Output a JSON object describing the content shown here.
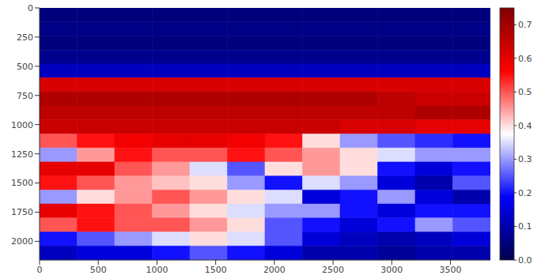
{
  "chart_data": {
    "type": "heatmap",
    "color": "seismic",
    "xlim": [
      0,
      3840
    ],
    "xticks": [
      0,
      500,
      1000,
      1500,
      2000,
      2500,
      3000,
      3500
    ],
    "ylim": [
      0,
      2160
    ],
    "yticks": [
      0,
      250,
      500,
      750,
      1000,
      1250,
      1500,
      1750,
      2000
    ],
    "x_bins": [
      0,
      320,
      640,
      960,
      1280,
      1600,
      1920,
      2240,
      2560,
      2880,
      3200,
      3520,
      3840
    ],
    "y_bins": [
      0,
      120,
      240,
      360,
      480,
      600,
      720,
      840,
      960,
      1080,
      1200,
      1320,
      1440,
      1560,
      1680,
      1800,
      1920,
      2040,
      2160
    ],
    "cells": [
      [
        0.05,
        0.05,
        0.05,
        0.05,
        0.05,
        0.05,
        0.05,
        0.05,
        0.05,
        0.05,
        0.05,
        0.05
      ],
      [
        0.06,
        0.06,
        0.06,
        0.06,
        0.06,
        0.06,
        0.06,
        0.06,
        0.06,
        0.06,
        0.06,
        0.06
      ],
      [
        0.05,
        0.05,
        0.05,
        0.05,
        0.05,
        0.05,
        0.05,
        0.05,
        0.05,
        0.05,
        0.05,
        0.05
      ],
      [
        0.07,
        0.07,
        0.07,
        0.07,
        0.07,
        0.07,
        0.07,
        0.07,
        0.07,
        0.07,
        0.07,
        0.07
      ],
      [
        0.12,
        0.12,
        0.12,
        0.12,
        0.12,
        0.12,
        0.12,
        0.12,
        0.12,
        0.12,
        0.12,
        0.12
      ],
      [
        0.62,
        0.62,
        0.62,
        0.62,
        0.62,
        0.62,
        0.62,
        0.62,
        0.62,
        0.62,
        0.62,
        0.62
      ],
      [
        0.68,
        0.68,
        0.68,
        0.68,
        0.68,
        0.68,
        0.68,
        0.68,
        0.68,
        0.66,
        0.64,
        0.64
      ],
      [
        0.66,
        0.66,
        0.66,
        0.66,
        0.66,
        0.66,
        0.66,
        0.66,
        0.66,
        0.66,
        0.68,
        0.68
      ],
      [
        0.64,
        0.64,
        0.64,
        0.64,
        0.64,
        0.64,
        0.64,
        0.64,
        0.62,
        0.62,
        0.6,
        0.6
      ],
      [
        0.5,
        0.55,
        0.58,
        0.6,
        0.6,
        0.58,
        0.55,
        0.4,
        0.3,
        0.25,
        0.22,
        0.2
      ],
      [
        0.3,
        0.45,
        0.55,
        0.5,
        0.5,
        0.55,
        0.5,
        0.45,
        0.4,
        0.35,
        0.3,
        0.3
      ],
      [
        0.6,
        0.6,
        0.5,
        0.45,
        0.35,
        0.25,
        0.4,
        0.45,
        0.4,
        0.2,
        0.15,
        0.2
      ],
      [
        0.55,
        0.5,
        0.45,
        0.42,
        0.4,
        0.3,
        0.2,
        0.35,
        0.3,
        0.15,
        0.1,
        0.25
      ],
      [
        0.3,
        0.4,
        0.45,
        0.5,
        0.45,
        0.4,
        0.35,
        0.15,
        0.2,
        0.3,
        0.15,
        0.1
      ],
      [
        0.6,
        0.55,
        0.5,
        0.45,
        0.4,
        0.35,
        0.3,
        0.3,
        0.2,
        0.15,
        0.2,
        0.2
      ],
      [
        0.5,
        0.55,
        0.5,
        0.5,
        0.45,
        0.4,
        0.25,
        0.2,
        0.15,
        0.2,
        0.3,
        0.25
      ],
      [
        0.2,
        0.25,
        0.3,
        0.35,
        0.4,
        0.35,
        0.25,
        0.15,
        0.12,
        0.1,
        0.12,
        0.15
      ],
      [
        0.12,
        0.15,
        0.15,
        0.2,
        0.25,
        0.2,
        0.15,
        0.1,
        0.1,
        0.08,
        0.1,
        0.1
      ]
    ],
    "colorbar": {
      "range": [
        0,
        0.75
      ],
      "ticks": [
        {
          "value": 0,
          "label": "0.0"
        },
        0.1,
        0.2,
        0.3,
        0.4,
        0.5,
        0.6,
        0.7
      ]
    }
  }
}
